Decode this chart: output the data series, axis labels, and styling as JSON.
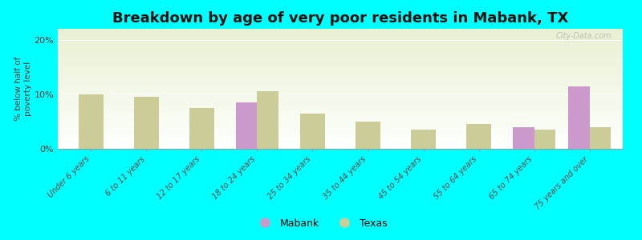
{
  "title": "Breakdown by age of very poor residents in Mabank, TX",
  "categories": [
    "Under 6 years",
    "6 to 11 years",
    "12 to 17 years",
    "18 to 24 years",
    "25 to 34 years",
    "35 to 44 years",
    "45 to 54 years",
    "55 to 64 years",
    "65 to 74 years",
    "75 years and over"
  ],
  "mabank_values": [
    0,
    0,
    0,
    8.5,
    0,
    0,
    0,
    0,
    4.0,
    11.5
  ],
  "texas_values": [
    10.0,
    9.5,
    7.5,
    10.5,
    6.5,
    5.0,
    3.5,
    4.5,
    3.5,
    4.0
  ],
  "mabank_color": "#cc99cc",
  "texas_color": "#cccc99",
  "background_color": "#00ffff",
  "title_fontsize": 13,
  "ylabel": "% below half of\npoverty level",
  "ylim": [
    0,
    22
  ],
  "yticks": [
    0,
    10,
    20
  ],
  "ytick_labels": [
    "0%",
    "10%",
    "20%"
  ],
  "watermark": "City-Data.com",
  "legend_labels": [
    "Mabank",
    "Texas"
  ],
  "bar_width": 0.38
}
